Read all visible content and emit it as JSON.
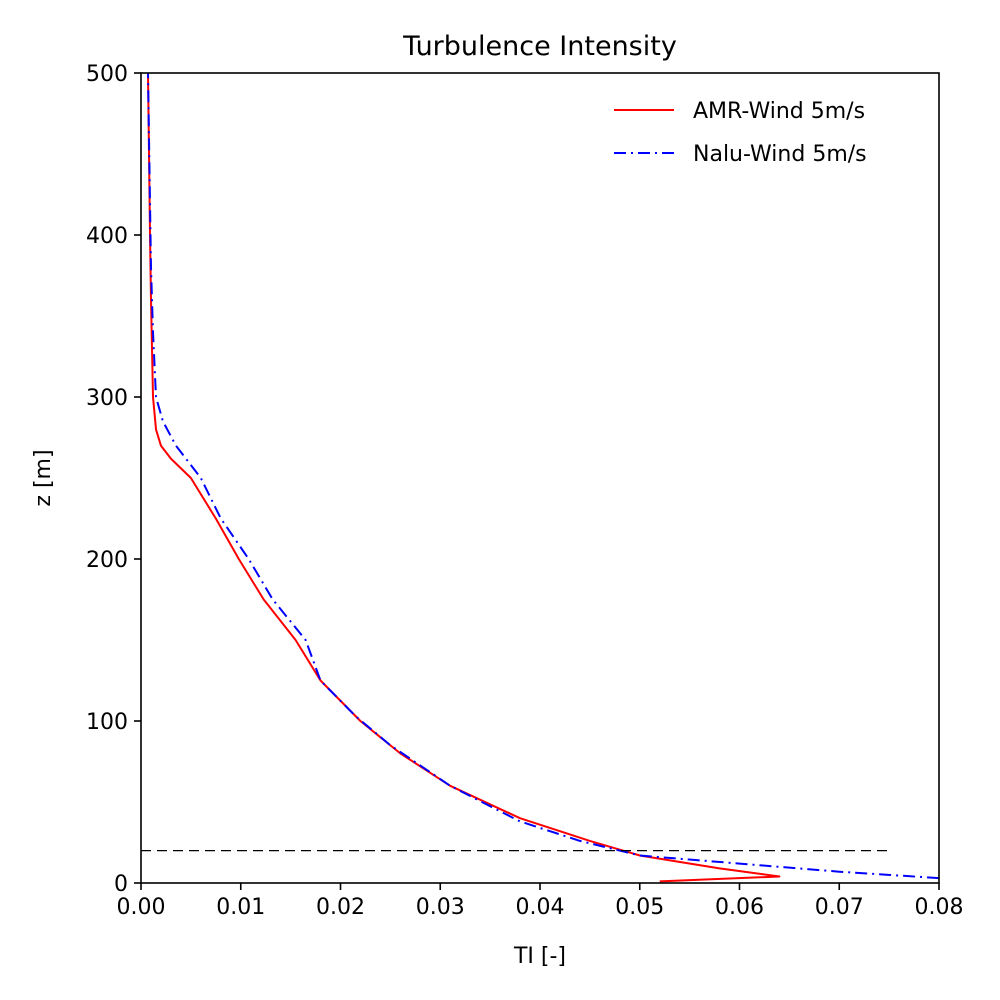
{
  "chart_data": {
    "type": "line",
    "title": "Turbulence Intensity",
    "xlabel": "TI [-]",
    "ylabel": "z [m]",
    "xlim": [
      0,
      0.08
    ],
    "ylim": [
      0,
      500
    ],
    "xticks": [
      "0.00",
      "0.01",
      "0.02",
      "0.03",
      "0.04",
      "0.05",
      "0.06",
      "0.07",
      "0.08"
    ],
    "yticks": [
      "0",
      "100",
      "200",
      "300",
      "400",
      "500"
    ],
    "grid": false,
    "legend_position": "top-right",
    "reference_line": {
      "y": 20,
      "x_start": 0.0,
      "x_end": 0.075,
      "style": "dashed",
      "color": "#000000"
    },
    "series": [
      {
        "name": "AMR-Wind 5m/s",
        "color": "#ff0000",
        "style": "solid",
        "points": [
          [
            0.052,
            1
          ],
          [
            0.064,
            4
          ],
          [
            0.058,
            9
          ],
          [
            0.05,
            17
          ],
          [
            0.045,
            26
          ],
          [
            0.038,
            40
          ],
          [
            0.031,
            60
          ],
          [
            0.026,
            80
          ],
          [
            0.022,
            100
          ],
          [
            0.018,
            125
          ],
          [
            0.0155,
            150
          ],
          [
            0.0123,
            175
          ],
          [
            0.0098,
            200
          ],
          [
            0.0075,
            225
          ],
          [
            0.005,
            250
          ],
          [
            0.003,
            262
          ],
          [
            0.002,
            270
          ],
          [
            0.0015,
            280
          ],
          [
            0.0012,
            300
          ],
          [
            0.0011,
            330
          ],
          [
            0.001,
            360
          ],
          [
            0.0009,
            400
          ],
          [
            0.0008,
            450
          ],
          [
            0.0007,
            500
          ]
        ]
      },
      {
        "name": "Nalu-Wind 5m/s",
        "color": "#0000ff",
        "style": "dashdot",
        "points": [
          [
            0.08,
            3
          ],
          [
            0.07,
            7
          ],
          [
            0.06,
            12
          ],
          [
            0.05,
            17
          ],
          [
            0.044,
            26
          ],
          [
            0.038,
            38
          ],
          [
            0.031,
            60
          ],
          [
            0.025,
            85
          ],
          [
            0.0215,
            103
          ],
          [
            0.018,
            125
          ],
          [
            0.0165,
            150
          ],
          [
            0.0132,
            175
          ],
          [
            0.0108,
            200
          ],
          [
            0.008,
            225
          ],
          [
            0.006,
            250
          ],
          [
            0.0035,
            270
          ],
          [
            0.0022,
            285
          ],
          [
            0.0015,
            300
          ],
          [
            0.0012,
            340
          ],
          [
            0.001,
            380
          ],
          [
            0.0009,
            420
          ],
          [
            0.0008,
            460
          ],
          [
            0.0007,
            500
          ]
        ]
      }
    ]
  }
}
